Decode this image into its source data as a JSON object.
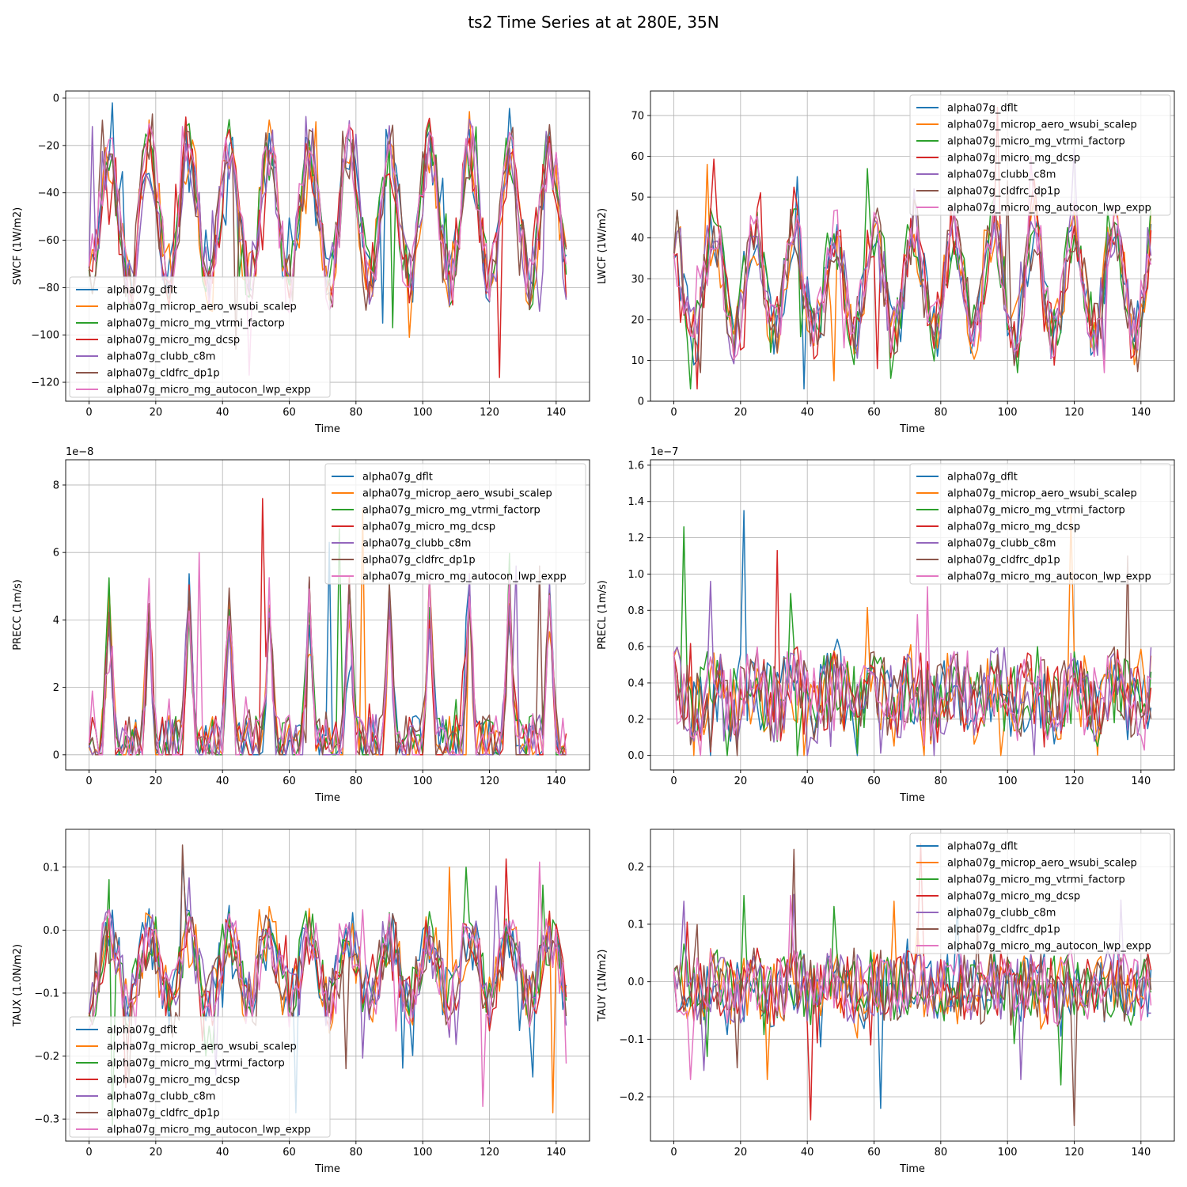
{
  "figure_title": "ts2 Time Series at at 280E, 35N",
  "series_names": [
    "alpha07g_dflt",
    "alpha07g_microp_aero_wsubi_scalep",
    "alpha07g_micro_mg_vtrmi_factorp",
    "alpha07g_micro_mg_dcsp",
    "alpha07g_clubb_c8m",
    "alpha07g_cldfrc_dp1p",
    "alpha07g_micro_mg_autocon_lwp_expp"
  ],
  "series_colors": [
    "#1f77b4",
    "#ff7f0e",
    "#2ca02c",
    "#d62728",
    "#9467bd",
    "#8c564b",
    "#e377c2"
  ],
  "chart_data": [
    {
      "type": "line",
      "xlabel": "Time",
      "ylabel": "SWCF (1W/m2)",
      "xlim": [
        -7,
        150
      ],
      "ylim": [
        -128,
        3
      ],
      "xticks": [
        0,
        20,
        40,
        60,
        80,
        100,
        120,
        140
      ],
      "yticks": [
        -120,
        -100,
        -80,
        -60,
        -40,
        -20,
        0
      ],
      "scale_label": "",
      "legend": "lower-left",
      "grid": true,
      "n_points": 144,
      "pattern": {
        "kind": "seasonal",
        "base": -50,
        "amp": 28,
        "noise": 14,
        "ymin": -120,
        "ymax": -2
      },
      "series": [
        {
          "name": "alpha07g_dflt",
          "min": -95,
          "max": -2
        },
        {
          "name": "alpha07g_microp_aero_wsubi_scalep",
          "min": -101,
          "max": -10
        },
        {
          "name": "alpha07g_micro_mg_vtrmi_factorp",
          "min": -97,
          "max": -10
        },
        {
          "name": "alpha07g_micro_mg_dcsp",
          "min": -118,
          "max": -8
        },
        {
          "name": "alpha07g_clubb_c8m",
          "min": -90,
          "max": -12
        },
        {
          "name": "alpha07g_cldfrc_dp1p",
          "min": -106,
          "max": -14
        },
        {
          "name": "alpha07g_micro_mg_autocon_lwp_expp",
          "min": -117,
          "max": -12
        }
      ]
    },
    {
      "type": "line",
      "xlabel": "Time",
      "ylabel": "LWCF (1W/m2)",
      "xlim": [
        -7,
        150
      ],
      "ylim": [
        0,
        76
      ],
      "xticks": [
        0,
        20,
        40,
        60,
        80,
        100,
        120,
        140
      ],
      "yticks": [
        0,
        10,
        20,
        30,
        40,
        50,
        60,
        70
      ],
      "scale_label": "",
      "legend": "upper-right",
      "grid": true,
      "n_points": 144,
      "pattern": {
        "kind": "seasonal",
        "base": 29,
        "amp": -13,
        "noise": 8,
        "ymin": 3,
        "ymax": 72
      },
      "series": [
        {
          "name": "alpha07g_dflt",
          "min": 3,
          "max": 55
        },
        {
          "name": "alpha07g_microp_aero_wsubi_scalep",
          "min": 5,
          "max": 58
        },
        {
          "name": "alpha07g_micro_mg_vtrmi_factorp",
          "min": 7,
          "max": 57
        },
        {
          "name": "alpha07g_micro_mg_dcsp",
          "min": 8,
          "max": 72
        },
        {
          "name": "alpha07g_clubb_c8m",
          "min": 9,
          "max": 52
        },
        {
          "name": "alpha07g_cldfrc_dp1p",
          "min": 7,
          "max": 54
        },
        {
          "name": "alpha07g_micro_mg_autocon_lwp_expp",
          "min": 7,
          "max": 60
        }
      ]
    },
    {
      "type": "line",
      "xlabel": "Time",
      "ylabel": "PRECC (1m/s)",
      "xlim": [
        -7,
        150
      ],
      "ylim": [
        -0.45,
        8.75
      ],
      "xticks": [
        0,
        20,
        40,
        60,
        80,
        100,
        120,
        140
      ],
      "yticks": [
        0,
        2,
        4,
        6,
        8
      ],
      "scale_label": "1e−8",
      "legend": "upper-right",
      "grid": true,
      "n_points": 144,
      "pattern": {
        "kind": "peaks",
        "base": 0.3,
        "amp": 4.2,
        "noise": 0.9,
        "ymin": 0,
        "ymax": 7.6
      },
      "series": [
        {
          "name": "alpha07g_dflt",
          "min": 0,
          "max": 6.3
        },
        {
          "name": "alpha07g_microp_aero_wsubi_scalep",
          "min": 0,
          "max": 7.3
        },
        {
          "name": "alpha07g_micro_mg_vtrmi_factorp",
          "min": 0,
          "max": 6.7
        },
        {
          "name": "alpha07g_micro_mg_dcsp",
          "min": 0,
          "max": 7.6
        },
        {
          "name": "alpha07g_clubb_c8m",
          "min": 0,
          "max": 5.6
        },
        {
          "name": "alpha07g_cldfrc_dp1p",
          "min": 0,
          "max": 5.6
        },
        {
          "name": "alpha07g_micro_mg_autocon_lwp_expp",
          "min": 0,
          "max": 6.0
        }
      ]
    },
    {
      "type": "line",
      "xlabel": "Time",
      "ylabel": "PRECL (1m/s)",
      "xlim": [
        -7,
        150
      ],
      "ylim": [
        -0.08,
        1.63
      ],
      "xticks": [
        0,
        20,
        40,
        60,
        80,
        100,
        120,
        140
      ],
      "yticks": [
        0.0,
        0.2,
        0.4,
        0.6,
        0.8,
        1.0,
        1.2,
        1.4,
        1.6
      ],
      "ytick_labels": [
        "0.0",
        "0.2",
        "0.4",
        "0.6",
        "0.8",
        "1.0",
        "1.2",
        "1.4",
        "1.6"
      ],
      "scale_label": "1e−7",
      "legend": "upper-right",
      "grid": true,
      "n_points": 144,
      "pattern": {
        "kind": "noisy",
        "base": 0.33,
        "amp": 0.06,
        "noise": 0.22,
        "ymin": 0.0,
        "ymax": 1.35
      },
      "series": [
        {
          "name": "alpha07g_dflt",
          "min": 0.0,
          "max": 1.35
        },
        {
          "name": "alpha07g_microp_aero_wsubi_scalep",
          "min": 0.0,
          "max": 1.33
        },
        {
          "name": "alpha07g_micro_mg_vtrmi_factorp",
          "min": 0.05,
          "max": 1.26
        },
        {
          "name": "alpha07g_micro_mg_dcsp",
          "min": 0.02,
          "max": 1.13
        },
        {
          "name": "alpha07g_clubb_c8m",
          "min": 0.05,
          "max": 0.96
        },
        {
          "name": "alpha07g_cldfrc_dp1p",
          "min": 0.03,
          "max": 1.1
        },
        {
          "name": "alpha07g_micro_mg_autocon_lwp_expp",
          "min": 0.03,
          "max": 0.93
        }
      ]
    },
    {
      "type": "line",
      "xlabel": "Time",
      "ylabel": "TAUX (1.0N/m2)",
      "xlim": [
        -7,
        150
      ],
      "ylim": [
        -0.335,
        0.16
      ],
      "xticks": [
        0,
        20,
        40,
        60,
        80,
        100,
        120,
        140
      ],
      "yticks": [
        -0.3,
        -0.2,
        -0.1,
        0.0,
        0.1
      ],
      "ytick_labels": [
        "−0.3",
        "−0.2",
        "−0.1",
        "0.0",
        "0.1"
      ],
      "scale_label": "",
      "legend": "lower-left",
      "grid": true,
      "n_points": 144,
      "pattern": {
        "kind": "seasonal",
        "base": -0.06,
        "amp": 0.05,
        "noise": 0.05,
        "ymin": -0.31,
        "ymax": 0.135
      },
      "series": [
        {
          "name": "alpha07g_dflt",
          "min": -0.29,
          "max": 0.112
        },
        {
          "name": "alpha07g_microp_aero_wsubi_scalep",
          "min": -0.29,
          "max": 0.1
        },
        {
          "name": "alpha07g_micro_mg_vtrmi_factorp",
          "min": -0.31,
          "max": 0.1
        },
        {
          "name": "alpha07g_micro_mg_dcsp",
          "min": -0.25,
          "max": 0.113
        },
        {
          "name": "alpha07g_clubb_c8m",
          "min": -0.23,
          "max": 0.07
        },
        {
          "name": "alpha07g_cldfrc_dp1p",
          "min": -0.22,
          "max": 0.135
        },
        {
          "name": "alpha07g_micro_mg_autocon_lwp_expp",
          "min": -0.28,
          "max": 0.108
        }
      ]
    },
    {
      "type": "line",
      "xlabel": "Time",
      "ylabel": "TAUY (1N/m2)",
      "xlim": [
        -7,
        150
      ],
      "ylim": [
        -0.277,
        0.265
      ],
      "xticks": [
        0,
        20,
        40,
        60,
        80,
        100,
        120,
        140
      ],
      "yticks": [
        -0.2,
        -0.1,
        0.0,
        0.1,
        0.2
      ],
      "ytick_labels": [
        "−0.2",
        "−0.1",
        "0.0",
        "0.1",
        "0.2"
      ],
      "scale_label": "",
      "legend": "upper-right",
      "grid": true,
      "n_points": 144,
      "pattern": {
        "kind": "noisy",
        "base": -0.01,
        "amp": 0.01,
        "noise": 0.06,
        "ymin": -0.25,
        "ymax": 0.24
      },
      "series": [
        {
          "name": "alpha07g_dflt",
          "min": -0.22,
          "max": 0.13
        },
        {
          "name": "alpha07g_microp_aero_wsubi_scalep",
          "min": -0.17,
          "max": 0.14
        },
        {
          "name": "alpha07g_micro_mg_vtrmi_factorp",
          "min": -0.13,
          "max": 0.15
        },
        {
          "name": "alpha07g_micro_mg_dcsp",
          "min": -0.24,
          "max": 0.24
        },
        {
          "name": "alpha07g_clubb_c8m",
          "min": -0.17,
          "max": 0.14
        },
        {
          "name": "alpha07g_cldfrc_dp1p",
          "min": -0.25,
          "max": 0.23
        },
        {
          "name": "alpha07g_micro_mg_autocon_lwp_expp",
          "min": -0.17,
          "max": 0.15
        }
      ]
    }
  ]
}
